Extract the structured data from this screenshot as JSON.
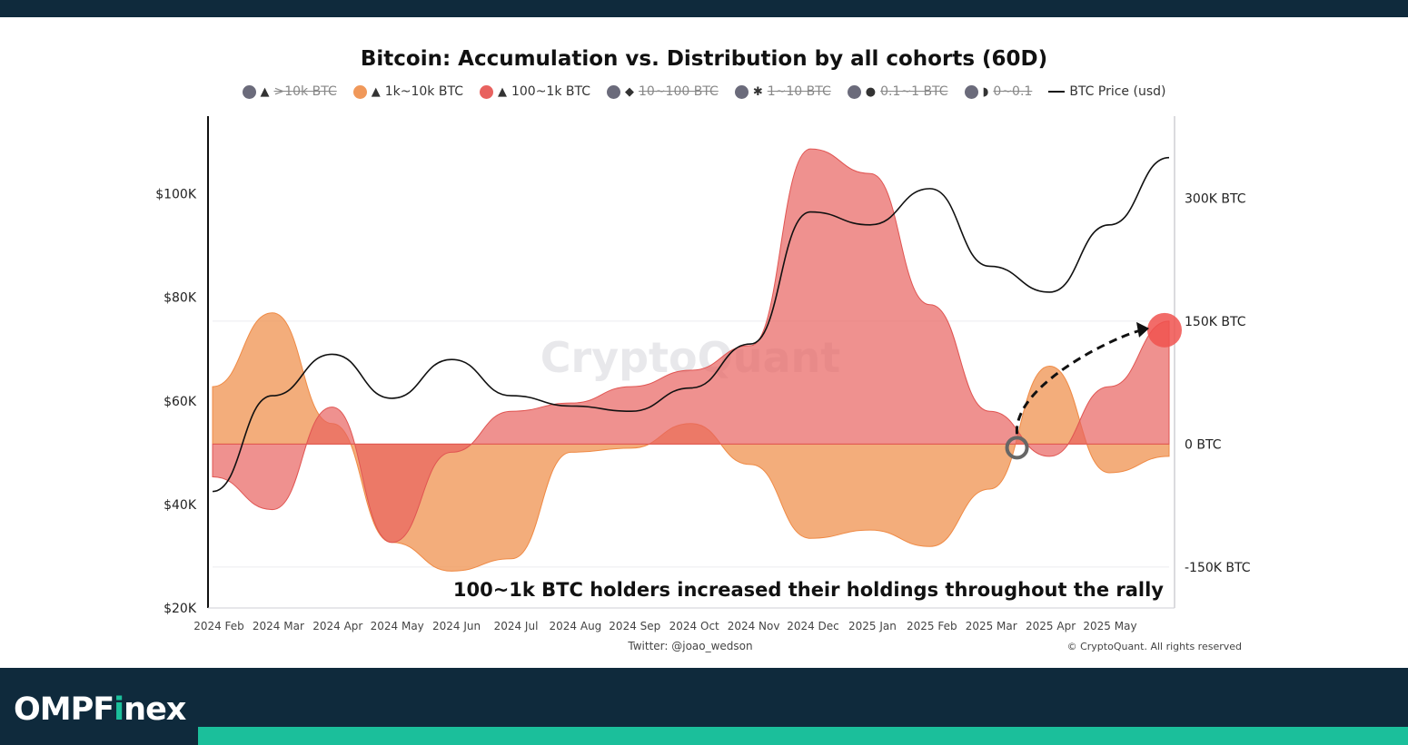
{
  "chart_data": {
    "type": "area",
    "title": "Bitcoin: Accumulation vs. Distribution by all cohorts (60D)",
    "legend": [
      {
        "name": ">10k BTC",
        "color": "#6b6b7b",
        "visible": false,
        "icon": "whale-icon"
      },
      {
        "name": "1k~10k BTC",
        "color": "#f0985a",
        "visible": true,
        "icon": "shark-icon"
      },
      {
        "name": "100~1k BTC",
        "color": "#e8625f",
        "visible": true,
        "icon": "shark-icon"
      },
      {
        "name": "10~100 BTC",
        "color": "#6b6b7b",
        "visible": false,
        "icon": "fish-icon"
      },
      {
        "name": "1~10 BTC",
        "color": "#6b6b7b",
        "visible": false,
        "icon": "crab-icon"
      },
      {
        "name": "0.1~1 BTC",
        "color": "#6b6b7b",
        "visible": false,
        "icon": "octopus-icon"
      },
      {
        "name": "0~0.1",
        "color": "#6b6b7b",
        "visible": false,
        "icon": "shrimp-icon"
      },
      {
        "name": "BTC Price (usd)",
        "color": "#111111",
        "visible": true,
        "icon": "line"
      }
    ],
    "x_ticks": [
      "2024 Feb",
      "2024 Mar",
      "2024 Apr",
      "2024 May",
      "2024 Jun",
      "2024 Jul",
      "2024 Aug",
      "2024 Sep",
      "2024 Oct",
      "2024 Nov",
      "2024 Dec",
      "2025 Jan",
      "2025 Feb",
      "2025 Mar",
      "2025 Apr",
      "2025 May"
    ],
    "y_left_ticks": [
      "$100K",
      "$80K",
      "$60K",
      "$40K",
      "$20K"
    ],
    "y_left_range": [
      20000,
      115000
    ],
    "y_right_ticks": [
      "300K BTC",
      "150K BTC",
      "0 BTC",
      "-150K BTC"
    ],
    "y_right_range": [
      -200000,
      400000
    ],
    "x": [
      "2024-02",
      "2024-03",
      "2024-04",
      "2024-05",
      "2024-06",
      "2024-07",
      "2024-08",
      "2024-09",
      "2024-10",
      "2024-11",
      "2024-12",
      "2025-01",
      "2025-02",
      "2025-03",
      "2025-04",
      "2025-05",
      "2025-06"
    ],
    "series": [
      {
        "name": "1k~10k BTC",
        "unit": "BTC",
        "values": [
          70000,
          160000,
          25000,
          -120000,
          -155000,
          -140000,
          -10000,
          -5000,
          25000,
          -25000,
          -115000,
          -105000,
          -125000,
          -55000,
          95000,
          -35000,
          -15000
        ]
      },
      {
        "name": "100~1k BTC",
        "unit": "BTC",
        "values": [
          -40000,
          -80000,
          45000,
          -120000,
          -10000,
          40000,
          50000,
          70000,
          90000,
          120000,
          360000,
          330000,
          170000,
          40000,
          -15000,
          70000,
          150000
        ]
      },
      {
        "name": "BTC Price (usd)",
        "unit": "USD",
        "values": [
          42500,
          61000,
          69000,
          60500,
          68000,
          61000,
          59000,
          58000,
          62500,
          71000,
          96500,
          94000,
          101000,
          86000,
          81000,
          94000,
          107000
        ]
      }
    ],
    "annotations": [
      "100~1k BTC holders increased their holdings throughout the rally"
    ],
    "watermark": "CryptoQuant",
    "source": "Twitter: @joao_wedson",
    "copyright": "© CryptoQuant. All rights reserved"
  },
  "footer": {
    "brand_prefix": "OMPF",
    "brand_accent": "i",
    "brand_suffix": "nex"
  }
}
